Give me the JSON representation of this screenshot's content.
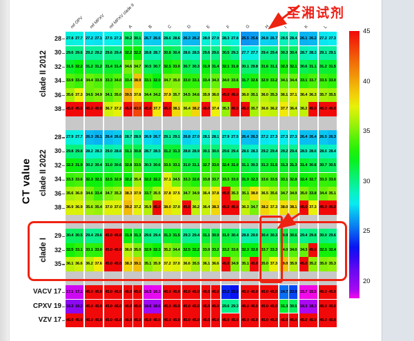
{
  "figure": {
    "y_axis_title": "CT value",
    "annotation": {
      "text": "圣湘试剂",
      "color": "#ed2018"
    },
    "accent_red": "#ee2211",
    "spacer_gray": "#c8c8c8"
  },
  "chart_data": {
    "type": "heatmap",
    "value_label": "CT value",
    "columns": [
      "ref OPV",
      "ref MPXV",
      "ref MPXV clade II",
      "A",
      "B",
      "C",
      "D",
      "E",
      "F",
      "G",
      "H",
      "I",
      "K",
      "L"
    ],
    "replicates_per_column": 2,
    "row_groups": [
      {
        "label": "clade II 2012",
        "rows": [
          {
            "label": "28",
            "values": [
              27.8,
              27.7,
              27.2,
              27.1,
              27.5,
              27.3,
              30.2,
              30.1,
              26.7,
              26.6,
              28.6,
              28.6,
              26.3,
              26.2,
              28.0,
              27.9,
              28.3,
              27.8,
              25.5,
              25.6,
              26.8,
              26.7,
              28.5,
              28.4,
              26.1,
              26.2,
              27.2,
              27.3
            ]
          },
          {
            "label": "30",
            "values": [
              29.6,
              29.6,
              29.2,
              29.2,
              29.6,
              29.4,
              32.2,
              32.2,
              28.8,
              28.7,
              30.8,
              30.4,
              28.6,
              28.5,
              29.6,
              29.6,
              30.5,
              29.3,
              27.7,
              27.7,
              29.4,
              29.4,
              30.3,
              30.4,
              28.7,
              28.3,
              29.1,
              29.1
            ]
          },
          {
            "label": "32",
            "values": [
              31.5,
              32.2,
              31.2,
              31.2,
              31.4,
              31.4,
              34.6,
              34.7,
              30.5,
              30.7,
              32.5,
              33.0,
              30.7,
              30.3,
              31.9,
              31.4,
              32.1,
              31.8,
              30.1,
              29.8,
              31.6,
              31.1,
              32.3,
              32.1,
              30.6,
              31.1,
              31.2,
              31.5
            ]
          },
          {
            "label": "34",
            "values": [
              33.9,
              33.4,
              34.4,
              33.9,
              33.3,
              34.0,
              33.4,
              38.9,
              33.1,
              32.0,
              34.7,
              35.0,
              33.0,
              33.1,
              33.4,
              34.3,
              34.0,
              33.6,
              31.7,
              32.6,
              32.9,
              33.2,
              34.1,
              34.4,
              33.1,
              33.7,
              33.5,
              33.0
            ]
          },
          {
            "label": "36",
            "values": [
              35.6,
              37.3,
              34.5,
              34.9,
              34.1,
              35.0,
              39.5,
              37.8,
              34.4,
              34.2,
              37.9,
              35.7,
              34.5,
              34.6,
              35.9,
              36.0,
              45.0,
              45.0,
              36.0,
              35.1,
              36.0,
              35.3,
              36.1,
              37.1,
              36.4,
              36.3,
              35.7,
              35.5
            ]
          },
          {
            "label": "38",
            "values": [
              45.0,
              45.0,
              45.0,
              45.0,
              36.7,
              37.2,
              45.0,
              43.0,
              45.0,
              37.7,
              45.0,
              38.1,
              36.4,
              38.2,
              45.0,
              37.4,
              35.3,
              45.0,
              45.0,
              35.7,
              36.6,
              36.2,
              37.7,
              36.4,
              36.2,
              45.0,
              45.0,
              45.0
            ]
          }
        ]
      },
      {
        "label": "clade II 2022",
        "rows": [
          {
            "label": "28",
            "values": [
              27.9,
              27.7,
              26.3,
              26.1,
              26.4,
              26.6,
              28.7,
              28.9,
              26.9,
              26.7,
              29.1,
              29.1,
              26.8,
              27.0,
              28.1,
              28.1,
              27.9,
              27.5,
              26.4,
              26.3,
              27.2,
              27.3,
              27.3,
              27.3,
              26.4,
              26.4,
              26.5,
              26.3
            ]
          },
          {
            "label": "30",
            "values": [
              29.8,
              29.8,
              28.2,
              28.3,
              29.0,
              28.6,
              31.1,
              30.8,
              28.7,
              28.5,
              31.2,
              31.3,
              28.8,
              28.9,
              30.1,
              30.0,
              29.6,
              29.4,
              28.6,
              28.3,
              29.2,
              29.4,
              29.2,
              29.4,
              28.5,
              28.6,
              28.6,
              28.4
            ]
          },
          {
            "label": "32",
            "values": [
              32.3,
              31.9,
              30.2,
              30.4,
              31.0,
              30.6,
              32.8,
              33.5,
              30.3,
              30.6,
              33.5,
              33.1,
              31.0,
              31.1,
              32.7,
              33.0,
              32.4,
              31.9,
              31.1,
              30.3,
              31.3,
              31.5,
              31.3,
              31.3,
              31.4,
              30.8,
              30.7,
              30.5
            ]
          },
          {
            "label": "34",
            "values": [
              33.3,
              33.6,
              32.3,
              32.1,
              32.5,
              32.9,
              32.2,
              35.4,
              32.2,
              32.2,
              37.1,
              34.5,
              33.3,
              32.6,
              33.8,
              33.7,
              33.3,
              33.0,
              31.9,
              32.3,
              33.6,
              33.5,
              33.1,
              32.8,
              32.4,
              32.7,
              33.3,
              33.0
            ]
          },
          {
            "label": "36",
            "values": [
              35.6,
              36.0,
              34.6,
              33.4,
              34.7,
              35.3,
              38.3,
              37.9,
              33.7,
              35.5,
              37.8,
              37.5,
              34.7,
              34.9,
              36.4,
              37.8,
              45.0,
              35.3,
              35.1,
              38.0,
              36.5,
              35.6,
              34.7,
              34.9,
              35.0,
              33.8,
              34.4,
              35.1
            ]
          },
          {
            "label": "38",
            "values": [
              36.9,
              36.9,
              35.6,
              35.4,
              37.0,
              37.0,
              39.2,
              37.2,
              35.9,
              45.0,
              38.0,
              37.0,
              45.0,
              36.2,
              36.4,
              38.3,
              45.0,
              45.0,
              36.3,
              34.7,
              38.2,
              37.3,
              38.0,
              38.1,
              45.0,
              37.3,
              45.0,
              45.0
            ]
          }
        ]
      },
      {
        "label": "clade I",
        "rows": [
          {
            "label": "29",
            "values": [
              30.4,
              30.5,
              29.4,
              29.6,
              45.0,
              45.0,
              31.9,
              31.3,
              29.6,
              29.4,
              31.3,
              31.5,
              29.3,
              29.4,
              31.1,
              30.9,
              31.0,
              30.4,
              28.8,
              29.0,
              30.4,
              30.3,
              30.9,
              30.6,
              29.4,
              29.8,
              30.0,
              29.6
            ]
          },
          {
            "label": "32",
            "values": [
              32.5,
              33.1,
              33.1,
              33.0,
              45.0,
              45.0,
              36.0,
              35.0,
              32.9,
              32.3,
              35.2,
              34.4,
              32.5,
              32.2,
              33.9,
              33.2,
              33.2,
              33.6,
              32.3,
              32.0,
              33.7,
              33.3,
              34.0,
              34.0,
              34.3,
              45.0,
              32.5,
              32.4
            ]
          },
          {
            "label": "35",
            "values": [
              36.1,
              36.6,
              36.2,
              37.6,
              45.0,
              45.0,
              38.3,
              39.1,
              35.1,
              35.9,
              37.2,
              37.0,
              36.6,
              35.5,
              36.1,
              36.6,
              45.0,
              34.9,
              35.1,
              45.0,
              35.0,
              37.3,
              39.0,
              35.9,
              45.0,
              35.2,
              35.0,
              35.3
            ]
          }
        ]
      },
      {
        "label": "",
        "rows": [
          {
            "label": "VACV 17",
            "values": [
              17.1,
              17.1,
              45.0,
              45.0,
              45.0,
              45.0,
              45.0,
              45.0,
              16.5,
              16.3,
              45.0,
              45.0,
              45.0,
              45.0,
              45.0,
              45.0,
              23.2,
              22.8,
              45.0,
              45.0,
              45.0,
              45.0,
              24.7,
              23.9,
              15.7,
              15.5,
              45.0,
              45.0
            ]
          },
          {
            "label": "CPXV 19",
            "values": [
              19.3,
              19.2,
              45.0,
              45.0,
              45.0,
              45.0,
              45.0,
              45.0,
              18.6,
              18.6,
              45.0,
              45.0,
              45.0,
              45.0,
              45.0,
              45.0,
              29.6,
              29.3,
              45.0,
              45.0,
              45.0,
              45.0,
              31.3,
              30.5,
              18.3,
              18.3,
              45.0,
              45.0
            ]
          },
          {
            "label": "VZV 17",
            "values": [
              45.0,
              45.0,
              45.0,
              45.0,
              45.0,
              45.0,
              45.0,
              45.0,
              45.0,
              45.0,
              45.0,
              45.0,
              45.0,
              45.0,
              45.0,
              45.0,
              45.0,
              45.0,
              45.0,
              45.0,
              45.0,
              45.0,
              45.0,
              45.0,
              45.0,
              45.0,
              45.0,
              45.0
            ]
          }
        ]
      }
    ],
    "colorbar": {
      "tick_labels": [
        "45",
        "40",
        "35",
        "30",
        "25",
        "20"
      ],
      "max": 45,
      "min_shown": 20
    },
    "highlighted_column": "H",
    "highlighted_group": "clade I",
    "white_outlined_columns_bottom": [
      "F",
      "I"
    ]
  }
}
